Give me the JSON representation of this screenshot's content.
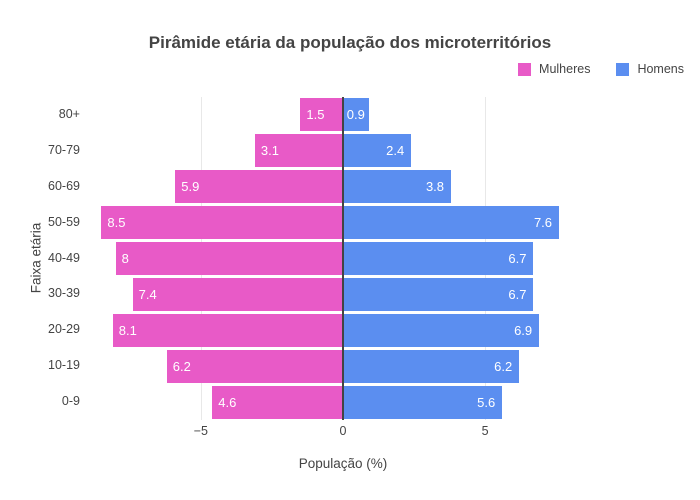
{
  "title": "Pirâmide etária da população dos microterritórios",
  "chart_data": {
    "type": "bar",
    "subtype": "population-pyramid",
    "title": "Pirâmide etária da população dos microterritórios",
    "categories": [
      "80+",
      "70-79",
      "60-69",
      "50-59",
      "40-49",
      "30-39",
      "20-29",
      "10-19",
      "0-9"
    ],
    "series": [
      {
        "name": "Mulheres",
        "side": "left",
        "color": "#e85ac7",
        "values": [
          1.5,
          3.1,
          5.9,
          8.5,
          8,
          7.4,
          8.1,
          6.2,
          4.6
        ]
      },
      {
        "name": "Homens",
        "side": "right",
        "color": "#5b8ef0",
        "values": [
          0.9,
          2.4,
          3.8,
          7.6,
          6.7,
          6.7,
          6.9,
          6.2,
          5.6
        ]
      }
    ],
    "xlabel": "População (%)",
    "ylabel": "Faixa etária",
    "xlim": [
      -8.9,
      8.9
    ],
    "xticks": [
      {
        "value": -5,
        "label": "−5"
      },
      {
        "value": 0,
        "label": "0"
      },
      {
        "value": 5,
        "label": "5"
      }
    ],
    "grid": "vertical-only",
    "legend_position": "top-right",
    "value_label_color": "#ffffff",
    "zeroline_color": "#444444",
    "gridline_color": "#e8e8e8",
    "text_color": "#444444",
    "background_color": "#ffffff"
  }
}
